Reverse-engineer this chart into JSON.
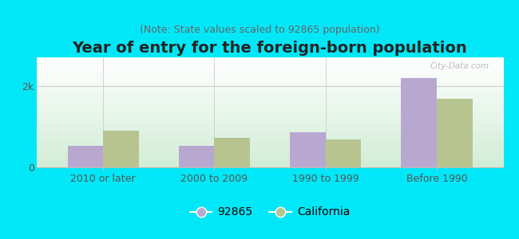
{
  "title": "Year of entry for the foreign-born population",
  "subtitle": "(Note: State values scaled to 92865 population)",
  "categories": [
    "2010 or later",
    "2000 to 2009",
    "1990 to 1999",
    "Before 1990"
  ],
  "values_92865": [
    530,
    520,
    870,
    2200
  ],
  "values_california": [
    900,
    720,
    680,
    1680
  ],
  "color_92865": "#b8a8d0",
  "color_california": "#b8c490",
  "background_outer": "#00e8f8",
  "ylim": [
    0,
    2700
  ],
  "ytick_label": "2k",
  "ytick_val": 2000,
  "legend_label_1": "92865",
  "legend_label_2": "California",
  "bar_width": 0.32,
  "title_fontsize": 14,
  "subtitle_fontsize": 9,
  "axis_label_fontsize": 9,
  "legend_fontsize": 10
}
